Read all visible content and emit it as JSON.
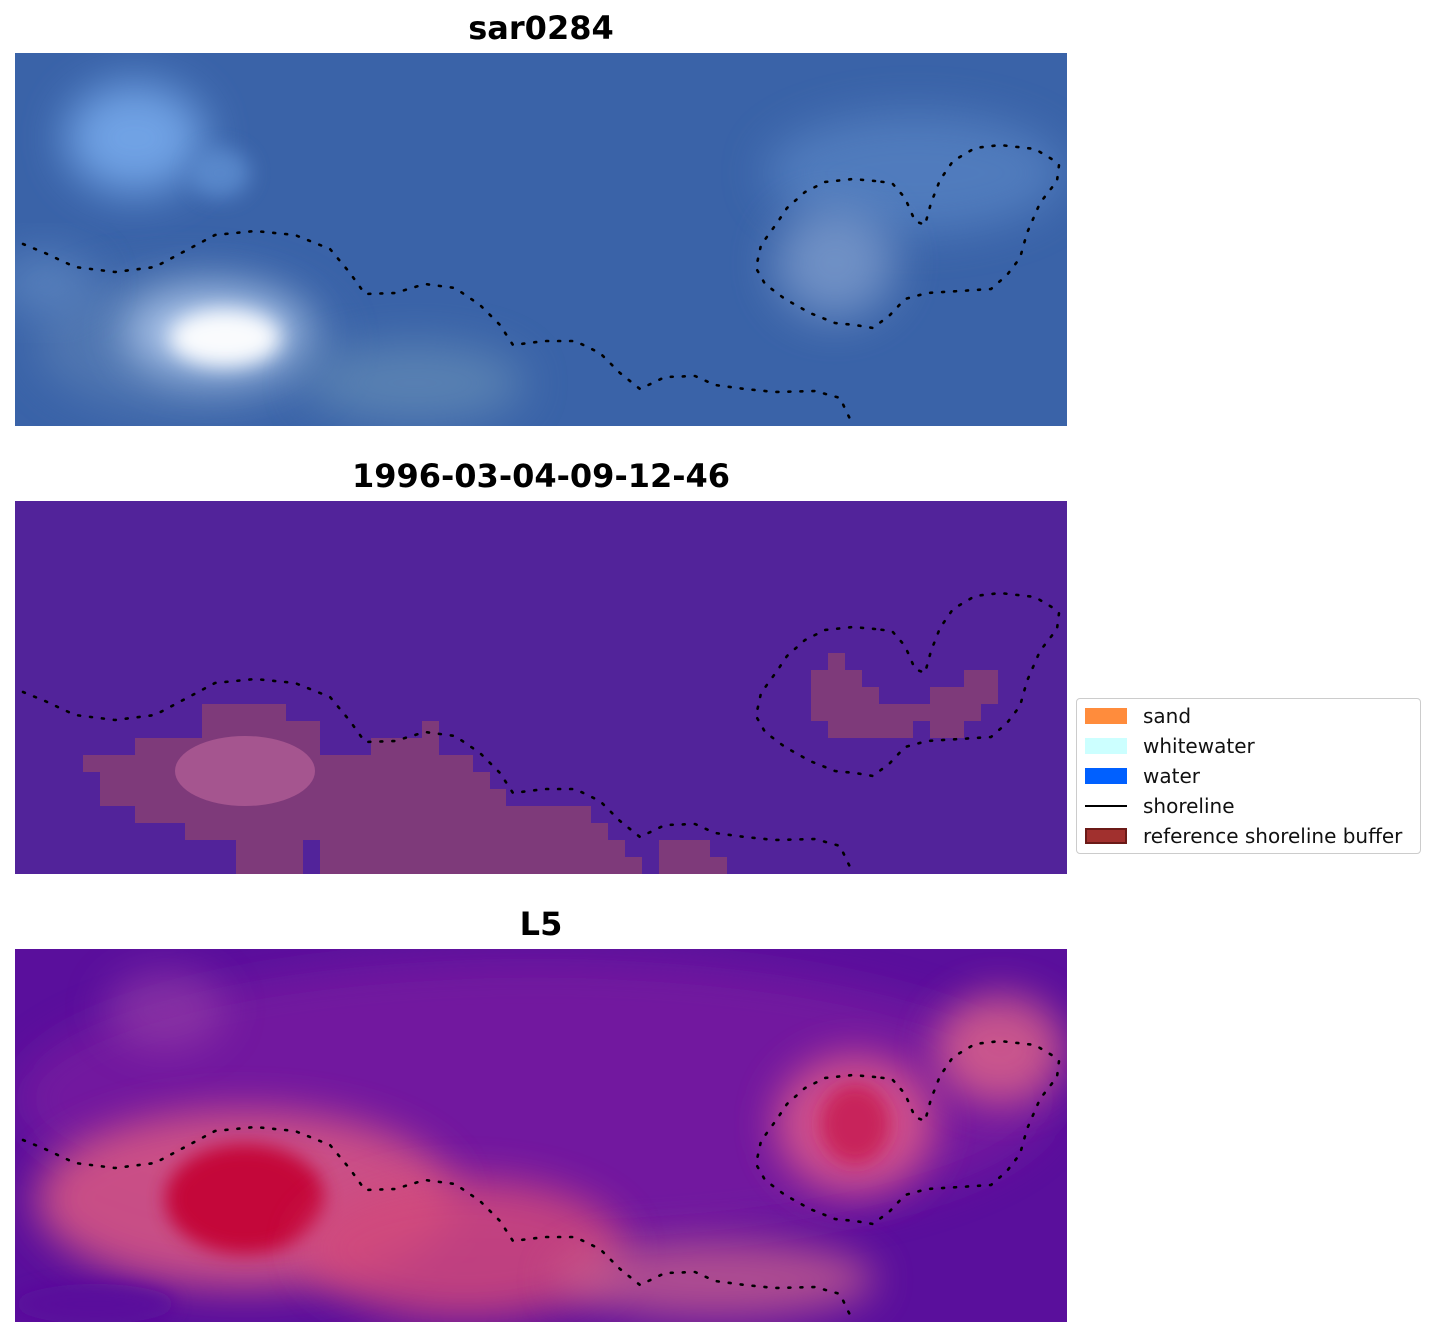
{
  "panels": [
    {
      "title": "sar0284",
      "style": "rgb"
    },
    {
      "title": "1996-03-04-09-12-46",
      "style": "classified"
    },
    {
      "title": "L5",
      "style": "index"
    }
  ],
  "legend": {
    "items": [
      {
        "label": "sand",
        "kind": "patch",
        "color": "#ff8c3c"
      },
      {
        "label": "whitewater",
        "kind": "patch",
        "color": "#ccffff"
      },
      {
        "label": "water",
        "kind": "patch",
        "color": "#0060ff"
      },
      {
        "label": "shoreline",
        "kind": "line",
        "color": "#000000"
      },
      {
        "label": "reference shoreline buffer",
        "kind": "patch",
        "color": "#a1302e",
        "edge": "#6b1a18"
      }
    ]
  },
  "colors": {
    "rgb_base": "#3a63a8",
    "classified_base": "#52239a",
    "classified_buffer": "#7e3a7a",
    "index_low": "#5a0f9c",
    "index_high": "#c40030"
  }
}
